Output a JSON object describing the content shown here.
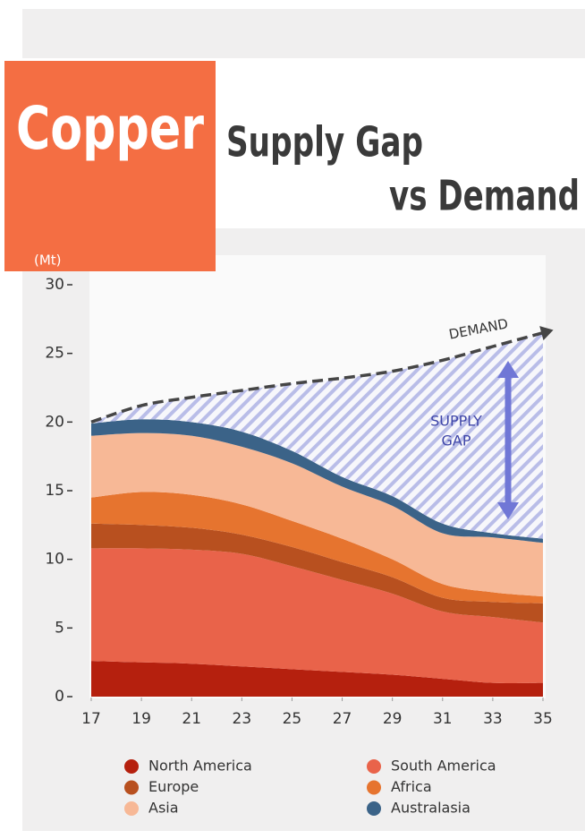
{
  "chart_data": {
    "type": "stacked_area",
    "title": "Copper",
    "subtitle_lines": [
      "Supply Gap",
      "vs Demand"
    ],
    "y_axis_label": "(Mt)",
    "x": [
      17,
      19,
      21,
      23,
      25,
      27,
      29,
      31,
      33,
      35
    ],
    "xlim": [
      17,
      35
    ],
    "xticks": [
      17,
      19,
      21,
      23,
      25,
      27,
      29,
      31,
      33,
      35
    ],
    "ylim": [
      0,
      30
    ],
    "yticks": [
      0,
      5,
      10,
      15,
      20,
      25,
      30
    ],
    "series": [
      {
        "name": "North America",
        "color": "#b5200e",
        "values": [
          2.6,
          2.5,
          2.4,
          2.2,
          2.0,
          1.8,
          1.6,
          1.3,
          1.0,
          1.0
        ]
      },
      {
        "name": "South America",
        "color": "#e9634a",
        "values": [
          8.2,
          8.3,
          8.3,
          8.2,
          7.5,
          6.7,
          5.9,
          4.9,
          4.8,
          4.4
        ]
      },
      {
        "name": "Europe",
        "color": "#b8501f",
        "values": [
          1.8,
          1.7,
          1.6,
          1.4,
          1.4,
          1.3,
          1.2,
          1.0,
          1.1,
          1.4
        ]
      },
      {
        "name": "Africa",
        "color": "#e6742f",
        "values": [
          1.9,
          2.4,
          2.4,
          2.2,
          1.9,
          1.7,
          1.3,
          1.0,
          0.7,
          0.5
        ]
      },
      {
        "name": "Asia",
        "color": "#f7b896",
        "values": [
          4.5,
          4.3,
          4.3,
          4.2,
          4.2,
          3.8,
          3.9,
          3.7,
          4.0,
          3.9
        ]
      },
      {
        "name": "Australasia",
        "color": "#3b6388",
        "values": [
          0.9,
          1.0,
          1.0,
          1.1,
          0.9,
          0.7,
          0.7,
          0.7,
          0.3,
          0.3
        ]
      }
    ],
    "demand": {
      "label": "DEMAND",
      "color": "#454545",
      "values": [
        20,
        21.2,
        21.8,
        22.3,
        22.8,
        23.2,
        23.7,
        24.5,
        25.5,
        26.5
      ]
    },
    "supply_gap_label": [
      "SUPPLY",
      "GAP"
    ]
  }
}
